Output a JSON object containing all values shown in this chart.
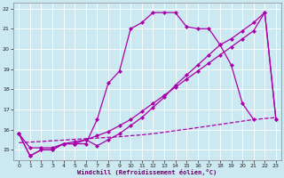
{
  "line1_x": [
    0,
    1,
    2,
    3,
    4,
    5,
    6,
    7,
    8,
    9,
    10,
    11,
    12,
    13,
    14,
    15,
    16,
    17,
    18,
    19,
    20,
    21
  ],
  "line1_y": [
    15.8,
    14.7,
    15.0,
    15.0,
    15.3,
    15.3,
    15.3,
    16.5,
    18.3,
    18.9,
    21.0,
    21.3,
    21.8,
    21.8,
    21.8,
    21.1,
    21.0,
    21.0,
    20.2,
    19.2,
    17.3,
    16.5
  ],
  "line2_x": [
    0,
    1,
    2,
    3,
    4,
    5,
    6,
    7,
    8,
    9,
    10,
    11,
    12,
    13,
    14,
    15,
    16,
    17,
    18,
    19,
    20,
    21,
    22,
    23
  ],
  "line2_y": [
    15.8,
    15.1,
    15.1,
    15.1,
    15.3,
    15.4,
    15.5,
    15.7,
    15.9,
    16.2,
    16.5,
    16.9,
    17.3,
    17.7,
    18.1,
    18.5,
    18.9,
    19.3,
    19.7,
    20.1,
    20.5,
    20.9,
    21.8,
    16.5
  ],
  "line3_x": [
    0,
    1,
    2,
    3,
    4,
    5,
    6,
    7,
    8,
    9,
    10,
    11,
    12,
    13,
    14,
    15,
    16,
    17,
    18,
    19,
    20,
    21,
    22,
    23
  ],
  "line3_y": [
    15.8,
    14.7,
    15.0,
    15.0,
    15.3,
    15.3,
    15.5,
    15.2,
    15.5,
    15.8,
    16.2,
    16.6,
    17.1,
    17.6,
    18.2,
    18.7,
    19.2,
    19.7,
    20.2,
    20.5,
    20.9,
    21.3,
    21.8,
    16.5
  ],
  "dashed_x": [
    0,
    1,
    2,
    3,
    4,
    5,
    6,
    7,
    8,
    9,
    10,
    11,
    12,
    13,
    14,
    15,
    16,
    17,
    18,
    19,
    20,
    21,
    22,
    23
  ],
  "dashed_y": [
    15.35,
    15.38,
    15.41,
    15.45,
    15.48,
    15.52,
    15.55,
    15.58,
    15.62,
    15.65,
    15.7,
    15.74,
    15.8,
    15.87,
    15.95,
    16.02,
    16.1,
    16.18,
    16.26,
    16.34,
    16.42,
    16.5,
    16.55,
    16.6
  ],
  "xlabel": "Windchill (Refroidissement éolien,°C)",
  "ylim": [
    14.5,
    22.3
  ],
  "xlim": [
    -0.5,
    23.5
  ],
  "yticks": [
    15,
    16,
    17,
    18,
    19,
    20,
    21,
    22
  ],
  "xticks": [
    0,
    1,
    2,
    3,
    4,
    5,
    6,
    7,
    8,
    9,
    10,
    11,
    12,
    13,
    14,
    15,
    16,
    17,
    18,
    19,
    20,
    21,
    22,
    23
  ],
  "bg_color": "#cce8f0",
  "grid_color": "#ffffff",
  "line_color": "#aa00aa"
}
